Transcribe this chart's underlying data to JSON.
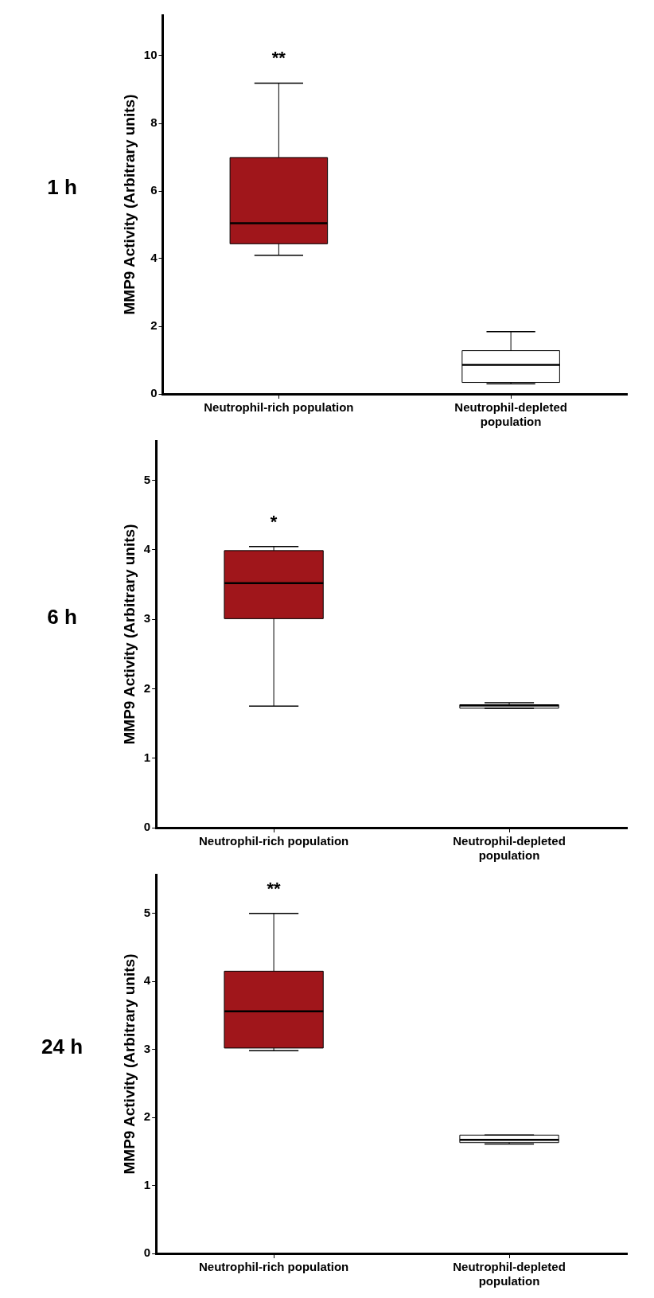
{
  "chart_data": [
    {
      "type": "box",
      "title": "1 h",
      "ylabel": "MMP9 Activity (Arbitrary units)",
      "categories": [
        "Neutrophil-rich population",
        "Neutrophil-depleted population"
      ],
      "colors": [
        "#a0161b",
        "#ffffff"
      ],
      "ylim": [
        0,
        11.2
      ],
      "yticks": [
        0,
        2,
        4,
        6,
        8,
        10
      ],
      "annotations": [
        "**"
      ],
      "boxes": [
        {
          "low": 4.1,
          "q1": 4.44,
          "median": 5.05,
          "q3": 6.99,
          "high": 9.19
        },
        {
          "low": 0.3,
          "q1": 0.34,
          "median": 0.86,
          "q3": 1.28,
          "high": 1.84
        }
      ]
    },
    {
      "type": "box",
      "title": "6 h",
      "ylabel": "MMP9 Activity (Arbitrary units)",
      "categories": [
        "Neutrophil-rich population",
        "Neutrophil-depleted population"
      ],
      "colors": [
        "#a0161b",
        "#ffffff"
      ],
      "ylim": [
        0,
        5.57
      ],
      "yticks": [
        0,
        1,
        2,
        3,
        4,
        5
      ],
      "annotations": [
        "*"
      ],
      "boxes": [
        {
          "low": 1.75,
          "q1": 3.01,
          "median": 3.52,
          "q3": 3.99,
          "high": 4.05
        },
        {
          "low": 1.72,
          "q1": 1.72,
          "median": 1.76,
          "q3": 1.77,
          "high": 1.8
        }
      ]
    },
    {
      "type": "box",
      "title": "24 h",
      "ylabel": "MMP9 Activity (Arbitrary units)",
      "categories": [
        "Neutrophil-rich population",
        "Neutrophil-depleted population"
      ],
      "colors": [
        "#a0161b",
        "#ffffff"
      ],
      "ylim": [
        0,
        5.57
      ],
      "yticks": [
        0,
        1,
        2,
        3,
        4,
        5
      ],
      "annotations": [
        "**"
      ],
      "boxes": [
        {
          "low": 2.98,
          "q1": 3.02,
          "median": 3.56,
          "q3": 4.15,
          "high": 5.0
        },
        {
          "low": 1.61,
          "q1": 1.63,
          "median": 1.67,
          "q3": 1.74,
          "high": 1.74
        }
      ]
    }
  ]
}
